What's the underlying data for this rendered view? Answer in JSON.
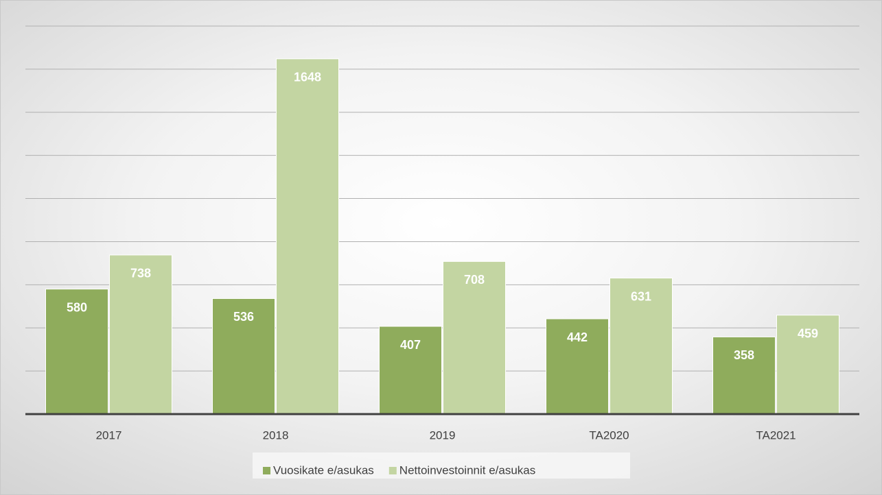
{
  "chart_data": {
    "type": "bar",
    "categories": [
      "2017",
      "2018",
      "2019",
      "TA2020",
      "TA2021"
    ],
    "series": [
      {
        "name": "Vuosikate e/asukas",
        "color": "#8fac5c",
        "values": [
          580,
          536,
          407,
          442,
          358
        ]
      },
      {
        "name": "Nettoinvestoinnit e/asukas",
        "color": "#c3d5a2",
        "values": [
          738,
          1648,
          708,
          631,
          459
        ]
      }
    ],
    "ylim": [
      0,
      1800
    ],
    "yticks": [
      0,
      200,
      400,
      600,
      800,
      1000,
      1200,
      1400,
      1600,
      1800
    ],
    "grid": true
  }
}
